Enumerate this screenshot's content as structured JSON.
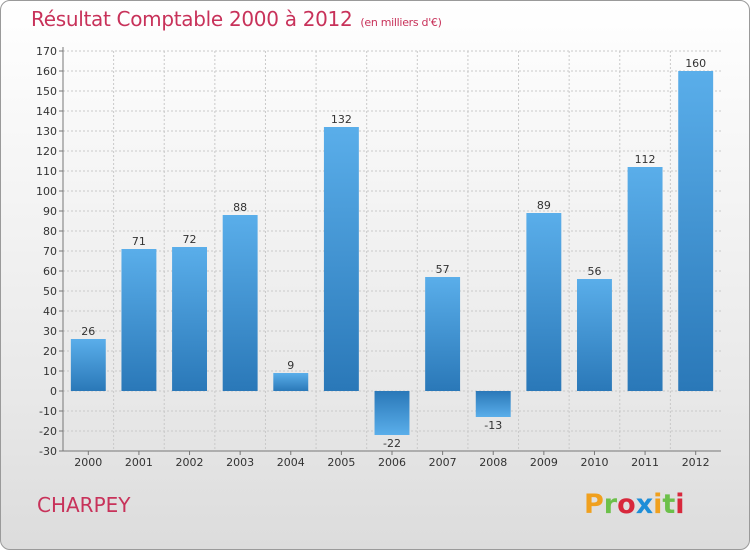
{
  "header": {
    "title": "Résultat Comptable 2000 à 2012",
    "subtitle": "(en milliers d'€)"
  },
  "footer": {
    "location": "CHARPEY",
    "logo_letters": [
      "P",
      "r",
      "o",
      "x",
      "i",
      "t",
      "i"
    ],
    "logo_colors": [
      "#f0a01e",
      "#6cc04a",
      "#d8283c",
      "#1e8ed8",
      "#f0a01e",
      "#6cc04a",
      "#d8283c"
    ]
  },
  "chart_data": {
    "type": "bar",
    "title": "Résultat Comptable 2000 à 2012",
    "subtitle": "(en milliers d'€)",
    "xlabel": "",
    "ylabel": "",
    "categories": [
      "2000",
      "2001",
      "2002",
      "2003",
      "2004",
      "2005",
      "2006",
      "2007",
      "2008",
      "2009",
      "2010",
      "2011",
      "2012"
    ],
    "values": [
      26,
      71,
      72,
      88,
      9,
      132,
      -22,
      57,
      -13,
      89,
      56,
      112,
      160
    ],
    "data_labels": [
      "26",
      "71",
      "72",
      "88",
      "9",
      "132",
      "-22",
      "57",
      "-13",
      "89",
      "56",
      "112",
      "160"
    ],
    "ylim": [
      -30,
      170
    ],
    "yticks": [
      -30,
      -20,
      -10,
      0,
      10,
      20,
      30,
      40,
      50,
      60,
      70,
      80,
      90,
      100,
      110,
      120,
      130,
      140,
      150,
      160,
      170
    ],
    "grid": true,
    "bar_color": "#3a8fd6",
    "bar_color_light": "#5aaeea",
    "bar_color_dark": "#2a78b8"
  }
}
